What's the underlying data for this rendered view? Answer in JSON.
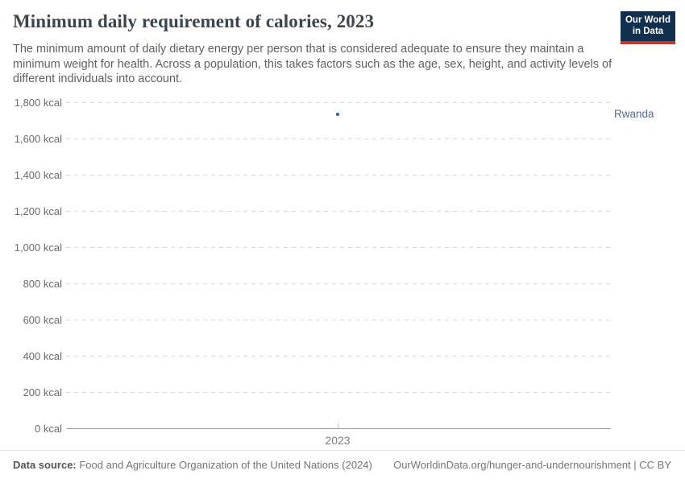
{
  "header": {
    "title": "Minimum daily requirement of calories, 2023",
    "logo": {
      "line1": "Our World",
      "line2": "in Data"
    }
  },
  "subtitle": "The minimum amount of daily dietary energy per person that is considered adequate to ensure they maintain a minimum weight for health. Across a population, this takes factors such as the age, sex, height, and activity levels of different individuals into account.",
  "chart_data": {
    "type": "scatter",
    "title": "Minimum daily requirement of calories, 2023",
    "series": [
      {
        "name": "Rwanda",
        "x": [
          2023
        ],
        "values": [
          1735
        ]
      }
    ],
    "xlabel": "",
    "ylabel": "",
    "x_ticks": [
      "2023"
    ],
    "y_ticks": [
      "0 kcal",
      "200 kcal",
      "400 kcal",
      "600 kcal",
      "800 kcal",
      "1,000 kcal",
      "1,200 kcal",
      "1,400 kcal",
      "1,600 kcal",
      "1,800 kcal"
    ],
    "y_tick_values": [
      0,
      200,
      400,
      600,
      800,
      1000,
      1200,
      1400,
      1600,
      1800
    ],
    "ylim": [
      0,
      1800
    ],
    "grid": "horizontal-dashed",
    "legend_position": "right-of-point",
    "point_color": "#3d5a8f",
    "label_color": "#4c6a9c"
  },
  "footer": {
    "datasource_label": "Data source:",
    "datasource_text": " Food and Agriculture Organization of the United Nations (2024)",
    "link_text": "OurWorldinData.org/hunger-and-undernourishment | CC BY"
  },
  "colors": {
    "logo_background": "#12304e",
    "logo_stripe": "#c0372f",
    "gridline": "#dadada",
    "axis": "#9a9a9a"
  }
}
